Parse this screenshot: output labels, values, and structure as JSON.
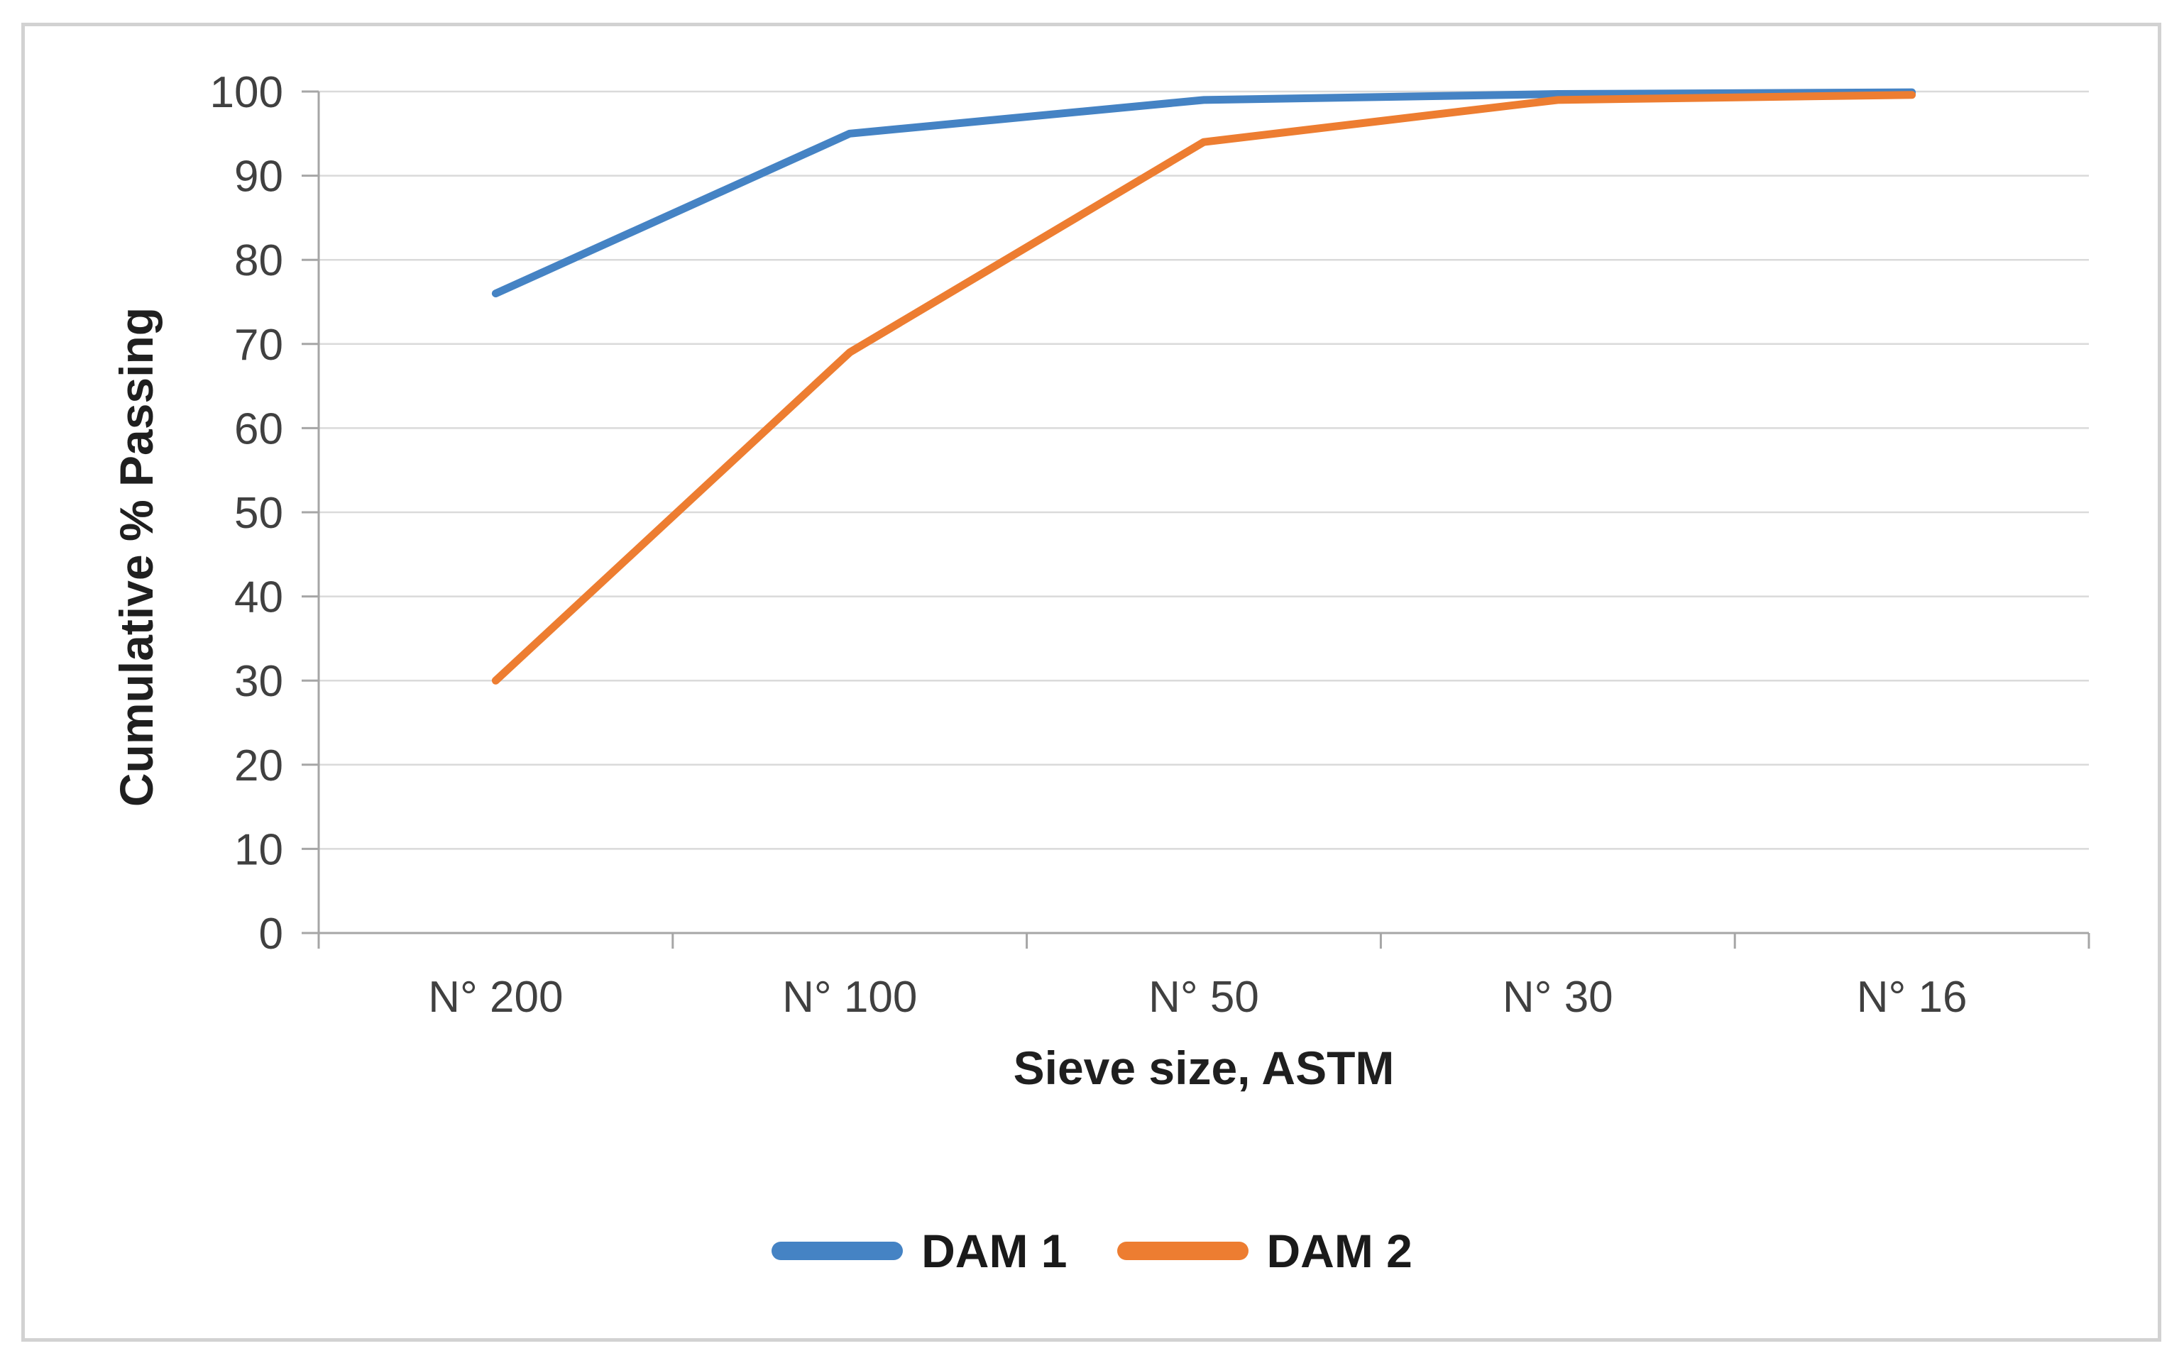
{
  "chart_data": {
    "type": "line",
    "categories": [
      "N° 200",
      "N° 100",
      "N° 50",
      "N° 30",
      "N° 16"
    ],
    "series": [
      {
        "name": "DAM 1",
        "color": "#4583C4",
        "values": [
          76,
          95,
          99,
          99.7,
          99.9
        ]
      },
      {
        "name": "DAM 2",
        "color": "#ED7D31",
        "values": [
          30,
          69,
          94,
          99,
          99.6
        ]
      }
    ],
    "title": "",
    "xlabel": "Sieve size, ASTM",
    "ylabel": "Cumulative % Passing",
    "ylim": [
      0,
      100
    ],
    "y_ticks": [
      0,
      10,
      20,
      30,
      40,
      50,
      60,
      70,
      80,
      90,
      100
    ],
    "grid": "horizontal",
    "legend_position": "bottom"
  },
  "style_colors": {
    "gridline": "#DADADA",
    "axis_line": "#A6A6A6",
    "tick_label": "#404040",
    "title_text": "#1F1F1F",
    "frame_border": "#D2D2D2",
    "background": "#FFFFFF"
  }
}
